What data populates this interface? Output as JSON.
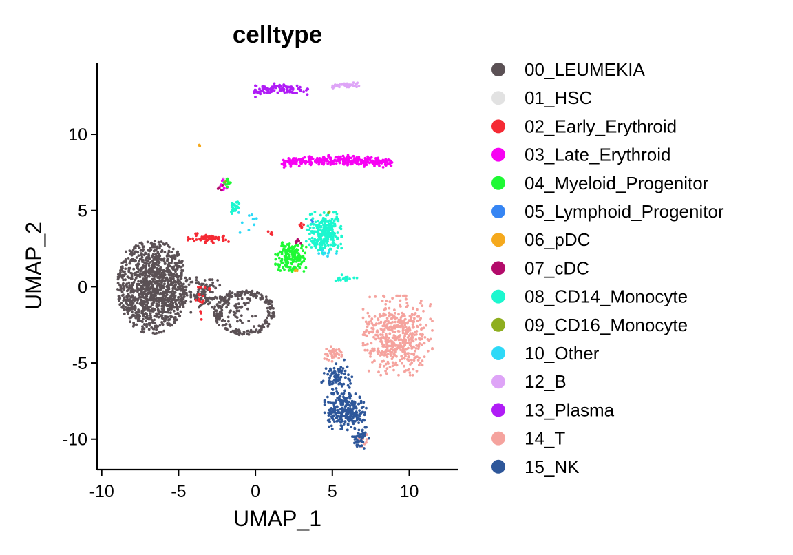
{
  "chart_data": {
    "type": "scatter",
    "title": "celltype",
    "xlabel": "UMAP_1",
    "ylabel": "UMAP_2",
    "xlim": [
      -10.3,
      13.2
    ],
    "ylim": [
      -12.0,
      14.7
    ],
    "x_ticks": [
      {
        "value": -10,
        "label": "-10"
      },
      {
        "value": -5,
        "label": "-5"
      },
      {
        "value": 0,
        "label": "0"
      },
      {
        "value": 5,
        "label": "5"
      },
      {
        "value": 10,
        "label": "10"
      }
    ],
    "y_ticks": [
      {
        "value": -10,
        "label": "-10"
      },
      {
        "value": -5,
        "label": "-5"
      },
      {
        "value": 0,
        "label": "0"
      },
      {
        "value": 5,
        "label": "5"
      },
      {
        "value": 10,
        "label": "10"
      }
    ],
    "grid": false,
    "legend_position": "right",
    "series": [
      {
        "name": "00_LEUMEKIA",
        "color": "#5B5155",
        "clusters": [
          {
            "type": "ellipse",
            "cx": -6.7,
            "cy": 0.0,
            "rx": 2.3,
            "ry": 3.1,
            "n": 850
          },
          {
            "type": "blob",
            "x": [
              -8.6,
              -4.2
            ],
            "y": [
              -2.0,
              2.3
            ],
            "n": 350
          },
          {
            "type": "ring",
            "cx": -0.7,
            "cy": -1.7,
            "rx": 1.9,
            "ry": 1.4,
            "n": 220
          },
          {
            "type": "blob",
            "x": [
              -4.2,
              -2.3
            ],
            "y": [
              -1.6,
              0.6
            ],
            "n": 90
          },
          {
            "type": "blob",
            "x": [
              -2.3,
              0.0
            ],
            "y": [
              -2.9,
              -0.3
            ],
            "n": 60
          }
        ]
      },
      {
        "name": "01_HSC",
        "color": "#E2E2E2",
        "clusters": [
          {
            "type": "blob",
            "x": [
              -2.3,
              -1.8
            ],
            "y": [
              6.6,
              7.1
            ],
            "n": 10
          }
        ]
      },
      {
        "name": "02_Early_Erythroid",
        "color": "#F52A34",
        "clusters": [
          {
            "type": "blob",
            "x": [
              -4.4,
              -1.7
            ],
            "y": [
              2.8,
              3.5
            ],
            "n": 60
          },
          {
            "type": "blob",
            "x": [
              -4.0,
              -3.0
            ],
            "y": [
              -2.4,
              0.6
            ],
            "n": 18
          },
          {
            "type": "blob",
            "x": [
              2.7,
              3.4
            ],
            "y": [
              3.8,
              4.2
            ],
            "n": 6
          },
          {
            "type": "blob",
            "x": [
              0.7,
              1.2
            ],
            "y": [
              3.3,
              3.7
            ],
            "n": 4
          }
        ]
      },
      {
        "name": "03_Late_Erythroid",
        "color": "#F703F3",
        "clusters": [
          {
            "type": "band",
            "x": [
              1.7,
              8.9
            ],
            "y": [
              7.6,
              8.6
            ],
            "n": 320
          },
          {
            "type": "blob",
            "x": [
              -2.5,
              -1.8
            ],
            "y": [
              6.2,
              7.1
            ],
            "n": 12
          }
        ]
      },
      {
        "name": "04_Myeloid_Progenitor",
        "color": "#1EF934",
        "clusters": [
          {
            "type": "blob",
            "x": [
              1.3,
              3.3
            ],
            "y": [
              1.0,
              2.9
            ],
            "n": 170
          },
          {
            "type": "blob",
            "x": [
              -2.1,
              -1.6
            ],
            "y": [
              6.5,
              7.2
            ],
            "n": 10
          }
        ]
      },
      {
        "name": "05_Lymphoid_Progenitor",
        "color": "#3685F3",
        "clusters": [
          {
            "type": "blob",
            "x": [
              3.6,
              3.8
            ],
            "y": [
              4.2,
              4.4
            ],
            "n": 2
          }
        ]
      },
      {
        "name": "06_pDC",
        "color": "#F5A91D",
        "clusters": [
          {
            "type": "blob",
            "x": [
              -3.7,
              -3.5
            ],
            "y": [
              9.2,
              9.4
            ],
            "n": 3
          },
          {
            "type": "blob",
            "x": [
              2.4,
              2.8
            ],
            "y": [
              1.0,
              1.2
            ],
            "n": 3
          }
        ]
      },
      {
        "name": "07_cDC",
        "color": "#B30B6A",
        "clusters": [
          {
            "type": "blob",
            "x": [
              2.5,
              3.0
            ],
            "y": [
              2.8,
              3.1
            ],
            "n": 10
          },
          {
            "type": "blob",
            "x": [
              -2.5,
              -2.0
            ],
            "y": [
              6.2,
              6.9
            ],
            "n": 5
          }
        ]
      },
      {
        "name": "08_CD14_Monocyte",
        "color": "#1CF7CF",
        "clusters": [
          {
            "type": "blob",
            "x": [
              3.3,
              5.6
            ],
            "y": [
              2.2,
              4.9
            ],
            "n": 260
          },
          {
            "type": "blob",
            "x": [
              -1.7,
              -1.0
            ],
            "y": [
              4.8,
              5.6
            ],
            "n": 30
          },
          {
            "type": "blob",
            "x": [
              5.1,
              6.6
            ],
            "y": [
              0.3,
              0.8
            ],
            "n": 18
          }
        ]
      },
      {
        "name": "09_CD16_Monocyte",
        "color": "#8EAE1F",
        "clusters": [
          {
            "type": "blob",
            "x": [
              4.7,
              4.9
            ],
            "y": [
              4.8,
              5.0
            ],
            "n": 3
          },
          {
            "type": "blob",
            "x": [
              -2.0,
              -1.9
            ],
            "y": [
              6.7,
              7.0
            ],
            "n": 2
          }
        ]
      },
      {
        "name": "10_Other",
        "color": "#2ED9F7",
        "clusters": [
          {
            "type": "blob",
            "x": [
              -1.3,
              0.4
            ],
            "y": [
              3.5,
              5.2
            ],
            "n": 10
          },
          {
            "type": "blob",
            "x": [
              4.0,
              5.6
            ],
            "y": [
              2.0,
              2.5
            ],
            "n": 8
          }
        ]
      },
      {
        "name": "12_B",
        "color": "#DEA4F7",
        "clusters": [
          {
            "type": "band",
            "x": [
              5.0,
              6.8
            ],
            "y": [
              12.9,
              13.4
            ],
            "n": 40
          }
        ]
      },
      {
        "name": "13_Plasma",
        "color": "#B01CF6",
        "clusters": [
          {
            "type": "band",
            "x": [
              -0.1,
              3.5
            ],
            "y": [
              12.3,
              13.3
            ],
            "n": 110
          }
        ]
      },
      {
        "name": "14_T",
        "color": "#F5A39E",
        "clusters": [
          {
            "type": "blob",
            "x": [
              7.0,
              11.5
            ],
            "y": [
              -5.8,
              -0.6
            ],
            "n": 520
          },
          {
            "type": "blob",
            "x": [
              4.2,
              5.8
            ],
            "y": [
              -4.9,
              -3.9
            ],
            "n": 40
          },
          {
            "type": "blob",
            "x": [
              6.6,
              7.4
            ],
            "y": [
              -10.5,
              -9.7
            ],
            "n": 12
          }
        ]
      },
      {
        "name": "15_NK",
        "color": "#2E579A",
        "clusters": [
          {
            "type": "blob",
            "x": [
              4.5,
              7.2
            ],
            "y": [
              -9.4,
              -7.0
            ],
            "n": 270
          },
          {
            "type": "blob",
            "x": [
              4.3,
              6.3
            ],
            "y": [
              -7.0,
              -4.8
            ],
            "n": 80
          },
          {
            "type": "blob",
            "x": [
              6.3,
              7.4
            ],
            "y": [
              -10.6,
              -9.4
            ],
            "n": 45
          }
        ]
      }
    ]
  }
}
